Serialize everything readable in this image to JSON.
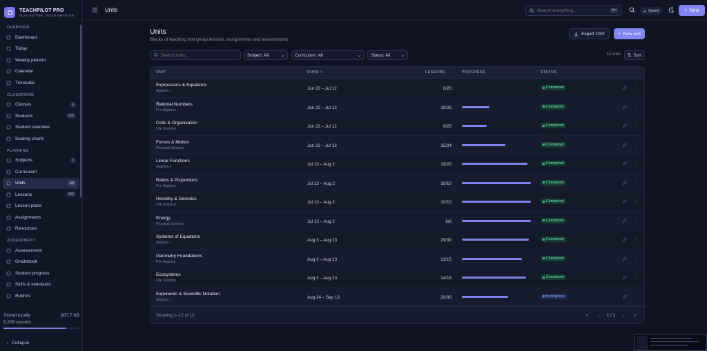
{
  "app": {
    "name": "TEACHPILOT PRO",
    "tagline": "PLAN BETTER. TEACH SMARTER"
  },
  "topbar": {
    "page": "Units",
    "search_placeholder": "Search everything...",
    "search_kbd": "⌘K",
    "saved_label": "Saved",
    "new_label": "New"
  },
  "sidebar": {
    "sections": [
      {
        "title": "OVERVIEW",
        "items": [
          {
            "label": "Dashboard",
            "icon": "dashboard-icon"
          },
          {
            "label": "Today",
            "icon": "calendar-day-icon"
          },
          {
            "label": "Weekly planner",
            "icon": "planner-icon"
          },
          {
            "label": "Calendar",
            "icon": "calendar-icon"
          },
          {
            "label": "Timetable",
            "icon": "timetable-icon"
          }
        ]
      },
      {
        "title": "CLASSROOM",
        "items": [
          {
            "label": "Classes",
            "icon": "classes-icon",
            "badge": "6"
          },
          {
            "label": "Students",
            "icon": "students-icon",
            "badge": "126"
          },
          {
            "label": "Student overview",
            "icon": "student-overview-icon"
          },
          {
            "label": "Seating charts",
            "icon": "seating-icon"
          }
        ]
      },
      {
        "title": "PLANNING",
        "items": [
          {
            "label": "Subjects",
            "icon": "subjects-icon",
            "badge": "5"
          },
          {
            "label": "Curriculum",
            "icon": "curriculum-icon"
          },
          {
            "label": "Units",
            "icon": "units-icon",
            "badge": "12",
            "active": true
          },
          {
            "label": "Lessons",
            "icon": "lessons-icon",
            "badge": "230"
          },
          {
            "label": "Lesson plans",
            "icon": "lesson-plans-icon"
          },
          {
            "label": "Assignments",
            "icon": "assignments-icon"
          },
          {
            "label": "Resources",
            "icon": "resources-icon"
          }
        ]
      },
      {
        "title": "ASSESSMENT",
        "items": [
          {
            "label": "Assessments",
            "icon": "assessments-icon"
          },
          {
            "label": "Gradebook",
            "icon": "gradebook-icon"
          },
          {
            "label": "Student progress",
            "icon": "student-progress-icon"
          },
          {
            "label": "Skills & standards",
            "icon": "skills-icon"
          },
          {
            "label": "Rubrics",
            "icon": "rubrics-icon"
          }
        ]
      }
    ],
    "storage": {
      "label": "Stored locally",
      "size": "887.7 KB",
      "records": "5,208 records",
      "fill_percent": 83
    },
    "collapse_label": "Collapse"
  },
  "page": {
    "title": "Units",
    "subtitle": "Blocks of teaching that group lessons, assignments and assessments.",
    "export_label": "Export CSV",
    "new_unit_label": "New unit"
  },
  "filters": {
    "search_placeholder": "Search units...",
    "subject": "Subject: All",
    "curriculum": "Curriculum: All",
    "status": "Status: All",
    "count": "12 units",
    "sort_label": "Sort"
  },
  "table": {
    "columns": {
      "unit": "UNIT",
      "runs": "RUNS",
      "lessons": "LESSONS",
      "progress": "PROGRESS",
      "status": "STATUS"
    },
    "rows": [
      {
        "name": "Expressions & Equations",
        "subject": "Algebra I",
        "runs": "Jun 22 – Jul 12",
        "lessons": "0/20",
        "progress": 0,
        "status": "Completed"
      },
      {
        "name": "Rational Numbers",
        "subject": "Pre-Algebra",
        "runs": "Jun 22 – Jul 12",
        "lessons": "10/25",
        "progress": 40,
        "status": "Completed"
      },
      {
        "name": "Cells & Organisation",
        "subject": "Life Science",
        "runs": "Jun 22 – Jul 12",
        "lessons": "9/25",
        "progress": 36,
        "status": "Completed"
      },
      {
        "name": "Forces & Motion",
        "subject": "Physical Science",
        "runs": "Jun 22 – Jul 12",
        "lessons": "15/24",
        "progress": 62.5,
        "status": "Completed"
      },
      {
        "name": "Linear Functions",
        "subject": "Algebra I",
        "runs": "Jul 13 – Aug 2",
        "lessons": "19/20",
        "progress": 95,
        "status": "Completed"
      },
      {
        "name": "Ratios & Proportions",
        "subject": "Pre-Algebra",
        "runs": "Jul 13 – Aug 2",
        "lessons": "10/10",
        "progress": 100,
        "status": "Completed"
      },
      {
        "name": "Heredity & Genetics",
        "subject": "Life Science",
        "runs": "Jul 13 – Aug 2",
        "lessons": "10/10",
        "progress": 100,
        "status": "Completed"
      },
      {
        "name": "Energy",
        "subject": "Physical Science",
        "runs": "Jul 13 – Aug 2",
        "lessons": "6/6",
        "progress": 100,
        "status": "Completed"
      },
      {
        "name": "Systems of Equations",
        "subject": "Algebra I",
        "runs": "Aug 3 – Aug 23",
        "lessons": "29/30",
        "progress": 96.7,
        "status": "Completed"
      },
      {
        "name": "Geometry Foundations",
        "subject": "Pre-Algebra",
        "runs": "Aug 3 – Aug 23",
        "lessons": "13/15",
        "progress": 86.7,
        "status": "Completed"
      },
      {
        "name": "Ecosystems",
        "subject": "Life Science",
        "runs": "Aug 3 – Aug 23",
        "lessons": "14/15",
        "progress": 93.3,
        "status": "Completed"
      },
      {
        "name": "Exponents & Scientific Notation",
        "subject": "Algebra I",
        "runs": "Aug 24 – Sep 13",
        "lessons": "20/30",
        "progress": 66.7,
        "status": "In progress"
      }
    ],
    "footer": "Showing 1–12 of 12",
    "page_indicator": "1 / 1"
  },
  "colors": {
    "accent": "#7f86f0",
    "completed": "#45d29a",
    "in_progress": "#6d9bff"
  }
}
